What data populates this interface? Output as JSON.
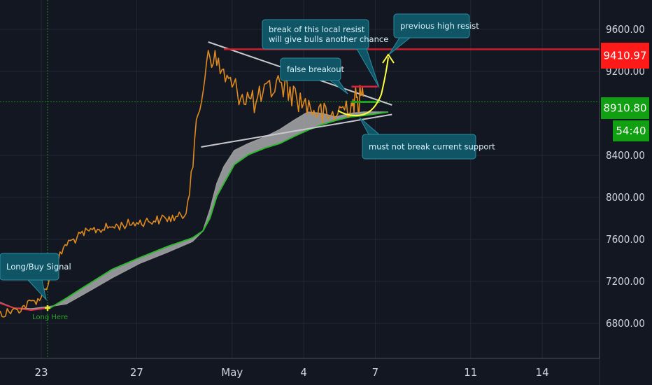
{
  "chart_data": {
    "type": "line",
    "title": "",
    "xlabel": "",
    "ylabel": "",
    "x_ticks": [
      "23",
      "27",
      "May",
      "4",
      "7",
      "11",
      "14"
    ],
    "y_ticks": [
      "6800.00",
      "7200.00",
      "7600.00",
      "8000.00",
      "8400.00",
      "9200.00",
      "9600.00"
    ],
    "ylim": [
      6650,
      9850
    ],
    "grid": true,
    "price_series": {
      "name": "price",
      "color": "#e08a1e",
      "points": [
        [
          "Apr 20",
          6790
        ],
        [
          "Apr 21",
          6870
        ],
        [
          "Apr 22",
          6930
        ],
        [
          "Apr 23",
          7050
        ],
        [
          "Apr 24",
          7550
        ],
        [
          "Apr 25",
          7680
        ],
        [
          "Apr 26",
          7720
        ],
        [
          "Apr 27",
          7760
        ],
        [
          "Apr 28",
          7790
        ],
        [
          "Apr 29",
          7820
        ],
        [
          "Apr 30",
          9400
        ],
        [
          "May 1",
          9050
        ],
        [
          "May 2",
          8900
        ],
        [
          "May 3",
          9100
        ],
        [
          "May 4",
          8900
        ],
        [
          "May 5",
          8750
        ],
        [
          "May 6",
          8900
        ],
        [
          "May 6.5",
          8960
        ]
      ]
    },
    "ribbon": {
      "upper_color": "#9a9a9a",
      "fill_color": "#bdbdbd",
      "lower_color": "#2db82d",
      "red_segment_color": "#e0384a"
    },
    "trendlines": [
      {
        "name": "resistance-trendline",
        "from": [
          "Apr 30",
          9480
        ],
        "to": [
          "May 7.7",
          8880
        ],
        "color": "#c8c8cc"
      },
      {
        "name": "support-trendline",
        "from": [
          "Apr 29.7",
          8480
        ],
        "to": [
          "May 7.7",
          8790
        ],
        "color": "#c8c8cc"
      }
    ],
    "projection": {
      "color": "#ffff3c",
      "target": 9410
    },
    "local_resist": {
      "value": 9055,
      "from": "May 6",
      "to": "May 7.1",
      "color": "#e0203a"
    },
    "current_support": {
      "value": 8910,
      "color": "#1aa31a"
    },
    "previous_high": {
      "value": 9410.97,
      "color": "#d11a2a"
    },
    "price_tags": [
      {
        "label": "9410.97",
        "bg": "#ff1a1a",
        "fg": "#ffffff"
      },
      {
        "label": "8910.80",
        "bg": "#11a011",
        "fg": "#ffffff"
      },
      {
        "label": "54:40",
        "bg": "#11a011",
        "fg": "#ffffff"
      }
    ],
    "annotations": [
      {
        "id": "long-buy",
        "lines": [
          "Long/Buy Signal"
        ]
      },
      {
        "id": "break-local",
        "lines": [
          "break of this local resist",
          "will give bulls another chance"
        ]
      },
      {
        "id": "prev-high",
        "lines": [
          "previous high resist"
        ]
      },
      {
        "id": "false-breakout",
        "lines": [
          "false breakout"
        ]
      },
      {
        "id": "must-not-break",
        "lines": [
          "must not break current support"
        ]
      }
    ],
    "signal_text": "Long Here"
  }
}
